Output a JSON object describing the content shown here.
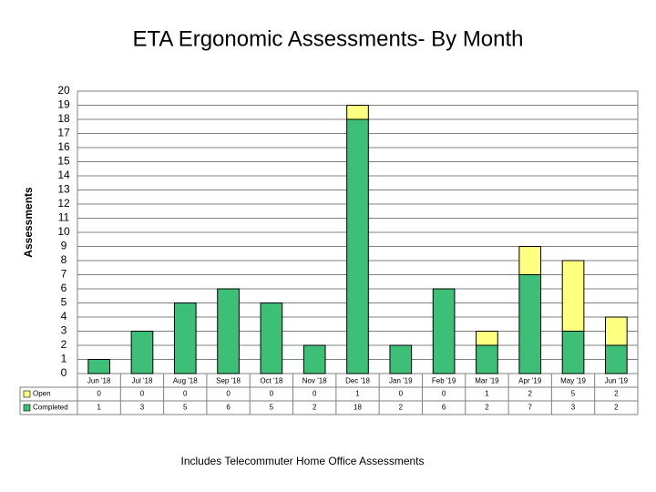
{
  "chart_data": {
    "type": "stacked_bar",
    "title": "ETA Ergonomic Assessments- By Month",
    "y_label": "Assessments",
    "footnote": "Includes Telecommuter Home Office Assessments",
    "categories": [
      "Jun '18",
      "Jul '18",
      "Aug '18",
      "Sep '18",
      "Oct '18",
      "Nov '18",
      "Dec '18",
      "Jan '19",
      "Feb '19",
      "Mar '19",
      "Apr '19",
      "May '19",
      "Jun '19"
    ],
    "series": [
      {
        "name": "Open",
        "color": "#ffff80",
        "values": [
          0,
          0,
          0,
          0,
          0,
          0,
          1,
          0,
          0,
          1,
          2,
          5,
          2
        ]
      },
      {
        "name": "Completed",
        "color": "#3dbf78",
        "values": [
          1,
          3,
          5,
          6,
          5,
          2,
          18,
          2,
          6,
          2,
          7,
          3,
          2
        ]
      }
    ],
    "ylim": [
      0,
      20
    ],
    "yticks": [
      0,
      1,
      2,
      3,
      4,
      5,
      6,
      7,
      8,
      9,
      10,
      11,
      12,
      13,
      14,
      15,
      16,
      17,
      18,
      19,
      20
    ],
    "grid": true
  }
}
